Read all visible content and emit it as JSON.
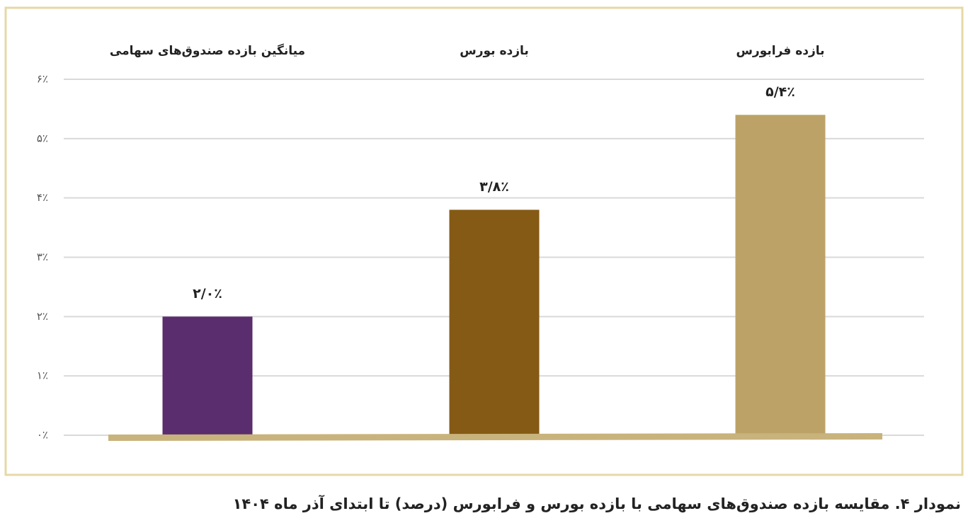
{
  "chart_data": {
    "type": "bar",
    "caption": "نمودار ۴. مقایسه بازده صندوق‌های سهامی با بازده بورس و فرابورس (درصد) تا ابتدای آذر ماه ۱۴۰۴",
    "categories": [
      "میانگین بازده صندوق‌های سهامی",
      "بازده بورس",
      "بازده فرابورس"
    ],
    "values": [
      2.0,
      3.8,
      5.4
    ],
    "value_labels": [
      "۲/۰٪",
      "۳/۸٪",
      "۵/۴٪"
    ],
    "colors": [
      "#5a2d6e",
      "#855a15",
      "#bda268"
    ],
    "ylim": [
      0,
      6
    ],
    "yticks": [
      {
        "value": 0,
        "label": "۰٪"
      },
      {
        "value": 1,
        "label": "۱٪"
      },
      {
        "value": 2,
        "label": "۲٪"
      },
      {
        "value": 3,
        "label": "۳٪"
      },
      {
        "value": 4,
        "label": "۴٪"
      },
      {
        "value": 5,
        "label": "۵٪"
      },
      {
        "value": 6,
        "label": "۶٪"
      }
    ],
    "grid": true
  }
}
